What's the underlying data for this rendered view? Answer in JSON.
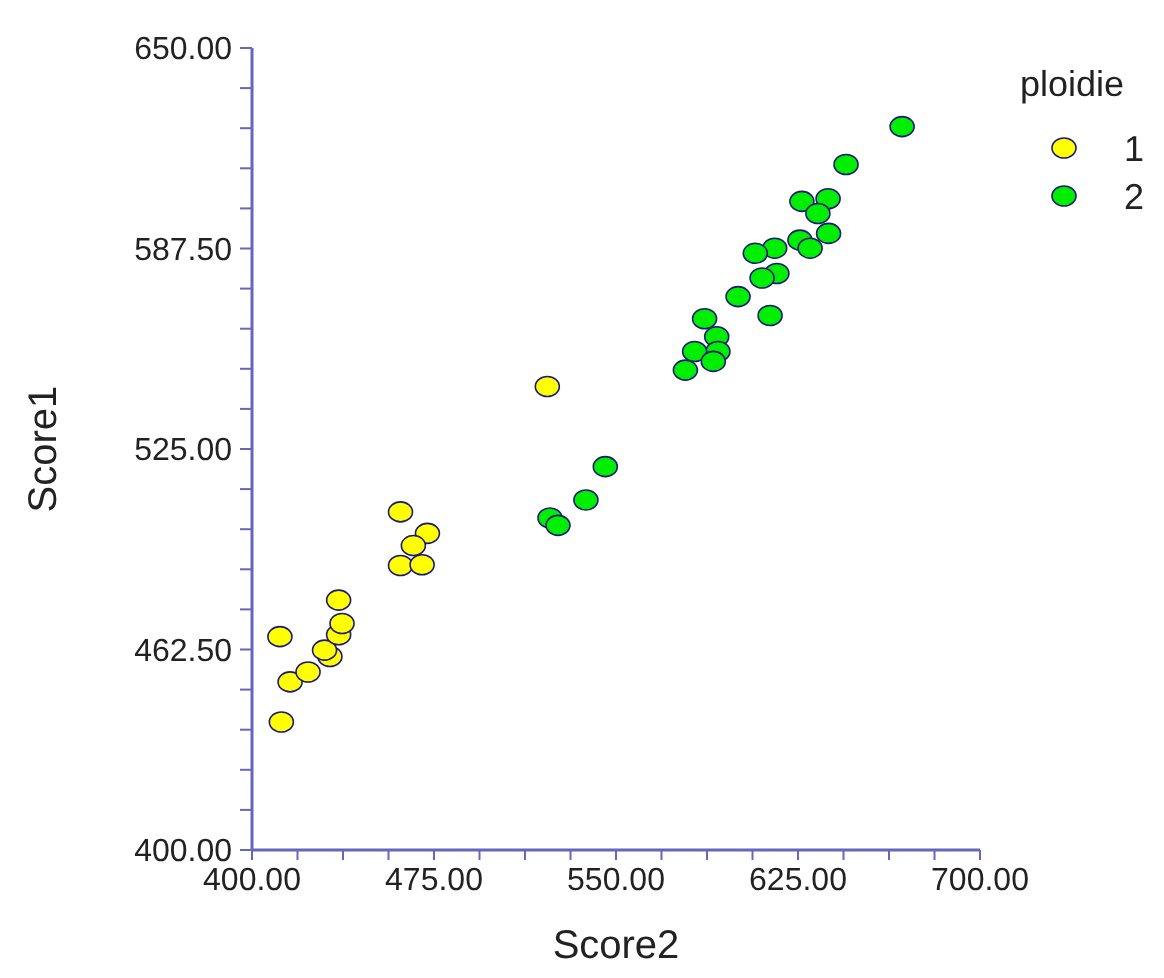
{
  "chart_data": {
    "type": "scatter",
    "xlabel": "Score2",
    "ylabel": "Score1",
    "legend_title": "ploidie",
    "legend": "top right",
    "marker": "circle",
    "grid": false,
    "xlim": [
      400,
      700
    ],
    "ylim": [
      400,
      650
    ],
    "xticks": [
      {
        "value": 400,
        "label": "400.00"
      },
      {
        "value": 418.75,
        "label": null
      },
      {
        "value": 437.5,
        "label": null
      },
      {
        "value": 456.25,
        "label": null
      },
      {
        "value": 475,
        "label": "475.00"
      },
      {
        "value": 493.75,
        "label": null
      },
      {
        "value": 512.5,
        "label": null
      },
      {
        "value": 531.25,
        "label": null
      },
      {
        "value": 550,
        "label": "550.00"
      },
      {
        "value": 568.75,
        "label": null
      },
      {
        "value": 587.5,
        "label": null
      },
      {
        "value": 606.25,
        "label": null
      },
      {
        "value": 625,
        "label": "625.00"
      },
      {
        "value": 643.75,
        "label": null
      },
      {
        "value": 662.5,
        "label": null
      },
      {
        "value": 681.25,
        "label": null
      },
      {
        "value": 700,
        "label": "700.00"
      }
    ],
    "yticks": [
      {
        "value": 400,
        "label": "400.00"
      },
      {
        "value": 412.5,
        "label": null
      },
      {
        "value": 425,
        "label": null
      },
      {
        "value": 437.5,
        "label": null
      },
      {
        "value": 450,
        "label": null
      },
      {
        "value": 462.5,
        "label": "462.50"
      },
      {
        "value": 475,
        "label": null
      },
      {
        "value": 487.5,
        "label": null
      },
      {
        "value": 500,
        "label": null
      },
      {
        "value": 512.5,
        "label": null
      },
      {
        "value": 525,
        "label": "525.00"
      },
      {
        "value": 537.5,
        "label": null
      },
      {
        "value": 550,
        "label": null
      },
      {
        "value": 562.5,
        "label": null
      },
      {
        "value": 575,
        "label": null
      },
      {
        "value": 587.5,
        "label": "587.50"
      },
      {
        "value": 600,
        "label": null
      },
      {
        "value": 612.5,
        "label": null
      },
      {
        "value": 625,
        "label": null
      },
      {
        "value": 637.5,
        "label": null
      },
      {
        "value": 650,
        "label": "650.00"
      }
    ],
    "series": [
      {
        "name": "1",
        "color": "#ffff00",
        "x": [
          412.1,
          411.5,
          415.7,
          423.1,
          432.1,
          429.9,
          435.7,
          437.1,
          435.7,
          461.2,
          472.3,
          466.5,
          461.2,
          470.1,
          521.7
        ],
        "values": [
          439.9,
          466.5,
          452.4,
          455.5,
          460.3,
          462.3,
          467.1,
          470.6,
          477.9,
          505.4,
          498.7,
          494.9,
          488.7,
          488.9,
          544.5
        ]
      },
      {
        "name": "2",
        "color": "#00ee00",
        "x": [
          667.9,
          644.8,
          626.6,
          637.4,
          633.2,
          637.6,
          625.8,
          630.0,
          615.4,
          607.4,
          616.3,
          610.2,
          600.3,
          613.5,
          586.5,
          591.5,
          592.0,
          582.4,
          590.1,
          578.6,
          545.6,
          537.6,
          522.8,
          526.1
        ],
        "values": [
          625.5,
          613.7,
          602.2,
          603.0,
          598.4,
          592.2,
          590.1,
          587.6,
          587.6,
          586.0,
          579.7,
          578.3,
          572.5,
          566.6,
          565.6,
          560.0,
          555.4,
          555.4,
          552.3,
          549.6,
          519.5,
          509.1,
          503.5,
          501.2
        ]
      }
    ]
  }
}
